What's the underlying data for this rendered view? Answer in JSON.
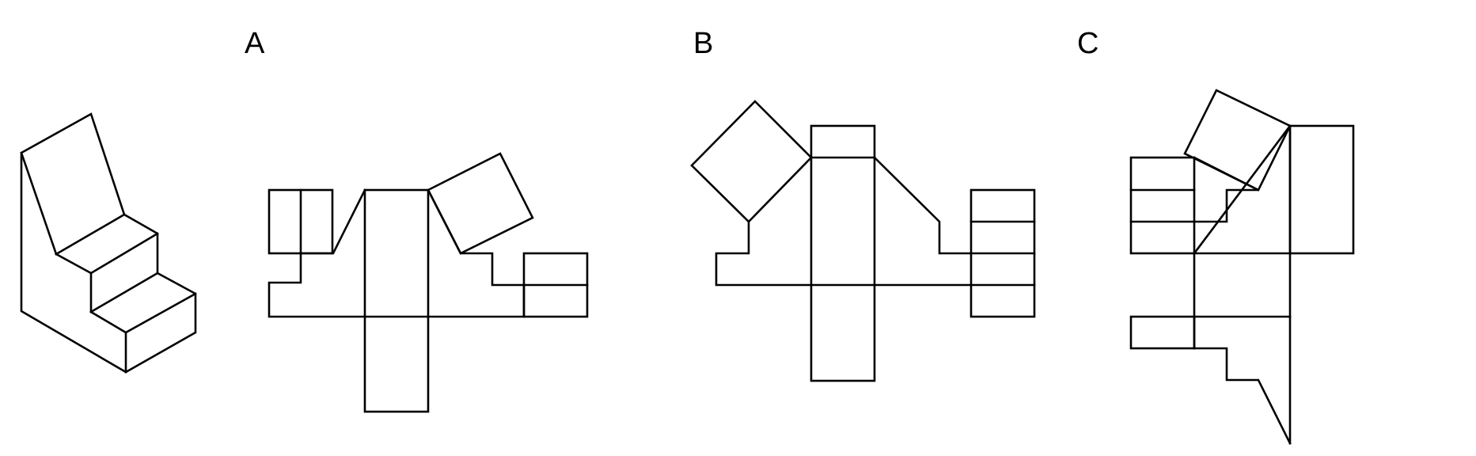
{
  "labels": {
    "a": "A",
    "b": "B",
    "c": "C"
  },
  "colors": {
    "stroke": "#000000",
    "background": "#ffffff"
  }
}
